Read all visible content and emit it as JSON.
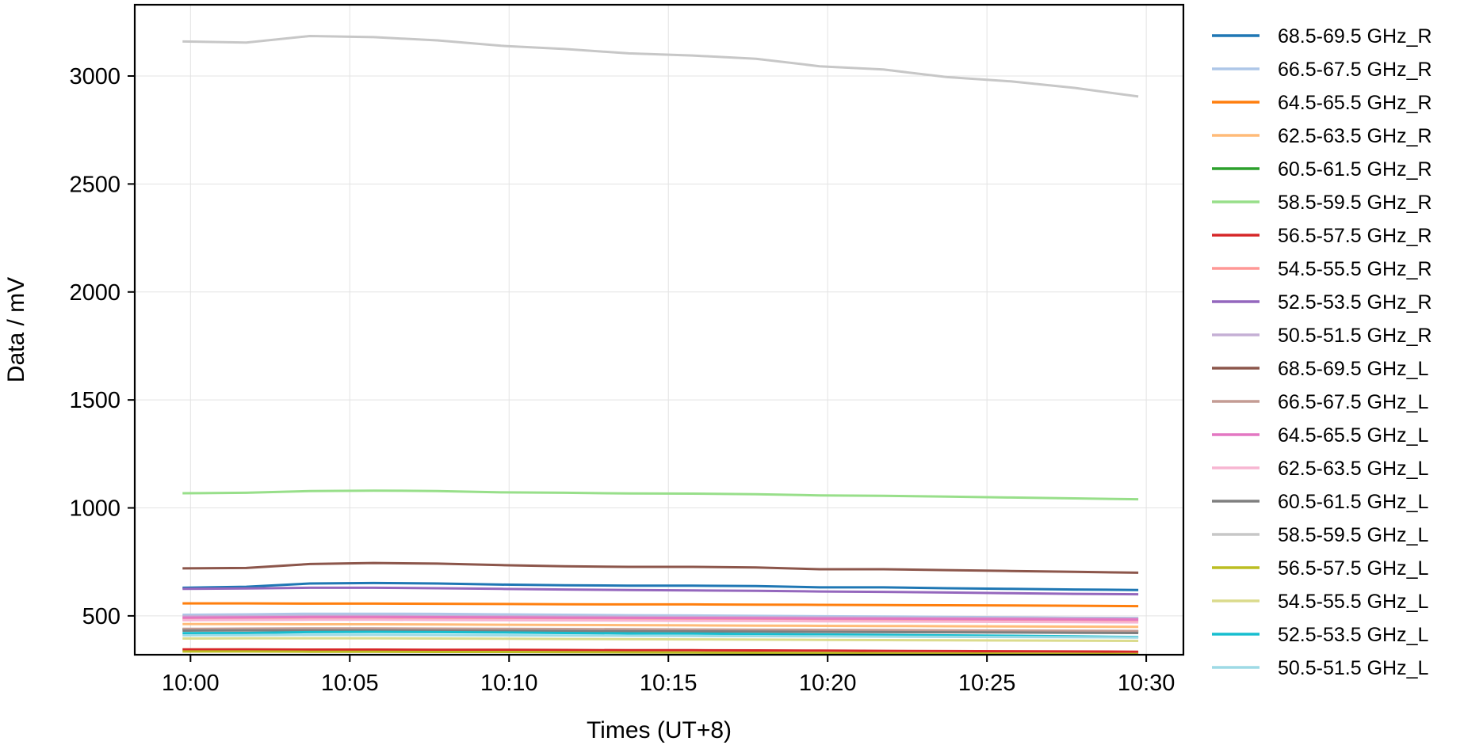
{
  "chart_data": {
    "type": "line",
    "title": "",
    "xlabel": "Times (UT+8)",
    "ylabel": "Data / mV",
    "xlim": [
      "09:58:15",
      "10:31:10"
    ],
    "ylim": [
      320,
      3330
    ],
    "x_ticks": [
      "10:00",
      "10:05",
      "10:10",
      "10:15",
      "10:20",
      "10:25",
      "10:30"
    ],
    "y_ticks": [
      500,
      1000,
      1500,
      2000,
      2500,
      3000
    ],
    "grid": true,
    "legend_position": "outside-right",
    "x": [
      "09:59:45",
      "10:01:45",
      "10:03:45",
      "10:05:45",
      "10:07:45",
      "10:09:45",
      "10:11:45",
      "10:13:45",
      "10:15:45",
      "10:17:45",
      "10:19:45",
      "10:21:45",
      "10:23:45",
      "10:25:45",
      "10:27:45",
      "10:29:45"
    ],
    "series": [
      {
        "name": "68.5-69.5 GHz_R",
        "color": "#1f77b4",
        "values": [
          630,
          635,
          650,
          652,
          650,
          645,
          642,
          640,
          640,
          638,
          632,
          632,
          628,
          625,
          622,
          620
        ]
      },
      {
        "name": "66.5-67.5 GHz_R",
        "color": "#aec7e8",
        "values": [
          505,
          507,
          510,
          510,
          509,
          507,
          505,
          503,
          502,
          500,
          498,
          497,
          495,
          493,
          491,
          490
        ]
      },
      {
        "name": "64.5-65.5 GHz_R",
        "color": "#ff7f0e",
        "values": [
          558,
          558,
          557,
          557,
          556,
          555,
          554,
          553,
          553,
          552,
          551,
          550,
          549,
          548,
          547,
          545
        ]
      },
      {
        "name": "62.5-63.5 GHz_R",
        "color": "#ffbb78",
        "values": [
          462,
          462,
          461,
          461,
          460,
          459,
          458,
          457,
          456,
          455,
          454,
          453,
          452,
          451,
          450,
          449
        ]
      },
      {
        "name": "60.5-61.5 GHz_R",
        "color": "#2ca02c",
        "values": [
          438,
          439,
          440,
          440,
          439,
          438,
          437,
          436,
          435,
          434,
          433,
          432,
          431,
          430,
          429,
          428
        ]
      },
      {
        "name": "58.5-59.5 GHz_R",
        "color": "#98df8a",
        "values": [
          1068,
          1070,
          1078,
          1080,
          1078,
          1072,
          1070,
          1067,
          1066,
          1063,
          1058,
          1056,
          1052,
          1048,
          1044,
          1040
        ]
      },
      {
        "name": "56.5-57.5 GHz_R",
        "color": "#d62728",
        "values": [
          345,
          345,
          344,
          344,
          343,
          343,
          342,
          341,
          341,
          340,
          339,
          338,
          337,
          336,
          335,
          334
        ]
      },
      {
        "name": "54.5-55.5 GHz_R",
        "color": "#ff9896",
        "values": [
          485,
          486,
          488,
          488,
          487,
          486,
          485,
          484,
          483,
          482,
          481,
          480,
          479,
          478,
          477,
          476
        ]
      },
      {
        "name": "52.5-53.5 GHz_R",
        "color": "#9467bd",
        "values": [
          625,
          627,
          630,
          630,
          628,
          625,
          622,
          620,
          618,
          616,
          613,
          611,
          608,
          605,
          602,
          600
        ]
      },
      {
        "name": "50.5-51.5 GHz_R",
        "color": "#c5b0d5",
        "values": [
          498,
          499,
          500,
          500,
          499,
          498,
          497,
          496,
          495,
          494,
          493,
          492,
          491,
          490,
          489,
          488
        ]
      },
      {
        "name": "68.5-69.5 GHz_L",
        "color": "#8c564b",
        "values": [
          720,
          722,
          740,
          745,
          742,
          735,
          730,
          727,
          727,
          724,
          716,
          716,
          712,
          708,
          704,
          700
        ]
      },
      {
        "name": "66.5-67.5 GHz_L",
        "color": "#c49c94",
        "values": [
          440,
          441,
          442,
          442,
          441,
          440,
          439,
          438,
          437,
          436,
          435,
          434,
          433,
          432,
          431,
          430
        ]
      },
      {
        "name": "64.5-65.5 GHz_L",
        "color": "#e377c2",
        "values": [
          492,
          493,
          495,
          495,
          494,
          493,
          492,
          491,
          490,
          489,
          488,
          487,
          486,
          485,
          484,
          483
        ]
      },
      {
        "name": "62.5-63.5 GHz_L",
        "color": "#f7b6d2",
        "values": [
          480,
          481,
          482,
          482,
          481,
          480,
          479,
          478,
          477,
          476,
          475,
          474,
          473,
          472,
          471,
          470
        ]
      },
      {
        "name": "60.5-61.5 GHz_L",
        "color": "#7f7f7f",
        "values": [
          432,
          433,
          433,
          433,
          432,
          431,
          430,
          429,
          428,
          427,
          426,
          425,
          424,
          423,
          422,
          421
        ]
      },
      {
        "name": "58.5-59.5 GHz_L",
        "color": "#c7c7c7",
        "values": [
          3160,
          3155,
          3185,
          3180,
          3165,
          3140,
          3125,
          3105,
          3095,
          3080,
          3045,
          3030,
          2995,
          2975,
          2945,
          2905
        ]
      },
      {
        "name": "56.5-57.5 GHz_L",
        "color": "#bcbd22",
        "values": [
          335,
          335,
          334,
          334,
          333,
          333,
          332,
          331,
          330,
          329,
          328,
          327,
          326,
          325,
          324,
          323
        ]
      },
      {
        "name": "54.5-55.5 GHz_L",
        "color": "#dbdb8d",
        "values": [
          395,
          396,
          396,
          396,
          395,
          394,
          393,
          392,
          391,
          390,
          389,
          388,
          387,
          386,
          385,
          384
        ]
      },
      {
        "name": "52.5-53.5 GHz_L",
        "color": "#17becf",
        "values": [
          420,
          421,
          425,
          426,
          425,
          423,
          421,
          419,
          418,
          416,
          414,
          412,
          410,
          408,
          405,
          402
        ]
      },
      {
        "name": "50.5-51.5 GHz_L",
        "color": "#9edae5",
        "values": [
          410,
          411,
          412,
          412,
          411,
          410,
          409,
          408,
          407,
          406,
          405,
          404,
          403,
          402,
          401,
          400
        ]
      }
    ]
  }
}
